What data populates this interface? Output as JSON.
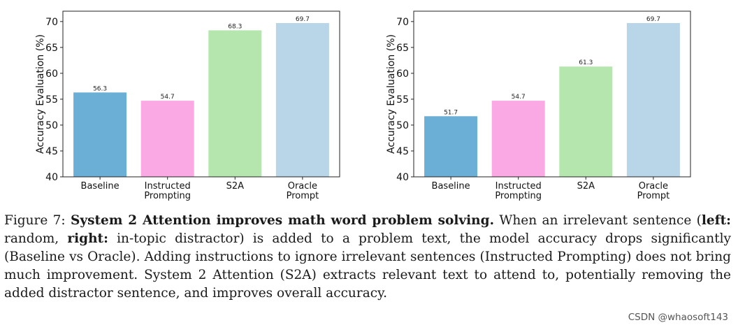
{
  "chart_data": [
    {
      "type": "bar",
      "panel": "left",
      "categories": [
        [
          "Baseline"
        ],
        [
          "Instructed",
          "Prompting"
        ],
        [
          "S2A"
        ],
        [
          "Oracle",
          "Prompt"
        ]
      ],
      "values": [
        56.3,
        54.7,
        68.3,
        69.7
      ],
      "value_labels": [
        "56.3",
        "54.7",
        "68.3",
        "69.7"
      ],
      "colors": [
        "#6baed6",
        "#fba9e5",
        "#b5e6ad",
        "#b9d6e8"
      ],
      "ylabel": "Accuracy Evaluation (%)",
      "ylim": [
        40,
        72
      ],
      "yticks": [
        40,
        45,
        50,
        55,
        60,
        65,
        70
      ],
      "grid": false
    },
    {
      "type": "bar",
      "panel": "right",
      "categories": [
        [
          "Baseline"
        ],
        [
          "Instructed",
          "Prompting"
        ],
        [
          "S2A"
        ],
        [
          "Oracle",
          "Prompt"
        ]
      ],
      "values": [
        51.7,
        54.7,
        61.3,
        69.7
      ],
      "value_labels": [
        "51.7",
        "54.7",
        "61.3",
        "69.7"
      ],
      "colors": [
        "#6baed6",
        "#fba9e5",
        "#b5e6ad",
        "#b9d6e8"
      ],
      "ylabel": "Accuracy Evaluation (%)",
      "ylim": [
        40,
        72
      ],
      "yticks": [
        40,
        45,
        50,
        55,
        60,
        65,
        70
      ],
      "grid": false
    }
  ],
  "caption": {
    "figure_label": "Figure 7:",
    "bold_title": "System 2 Attention improves math word problem solving.",
    "text_1": "When an irrelevant sentence (",
    "left_label": "left:",
    "text_2": "random,",
    "right_label": "right:",
    "text_3": "in-topic distractor) is added to a problem text, the model accuracy drops significantly (Baseline vs Oracle). Adding instructions to ignore irrelevant sentences (Instructed Prompting) does not bring much improvement. System 2 Attention (S2A) extracts relevant text to attend to, potentially removing the added distractor sentence, and improves overall accuracy."
  },
  "watermark": "CSDN @whaosoft143"
}
